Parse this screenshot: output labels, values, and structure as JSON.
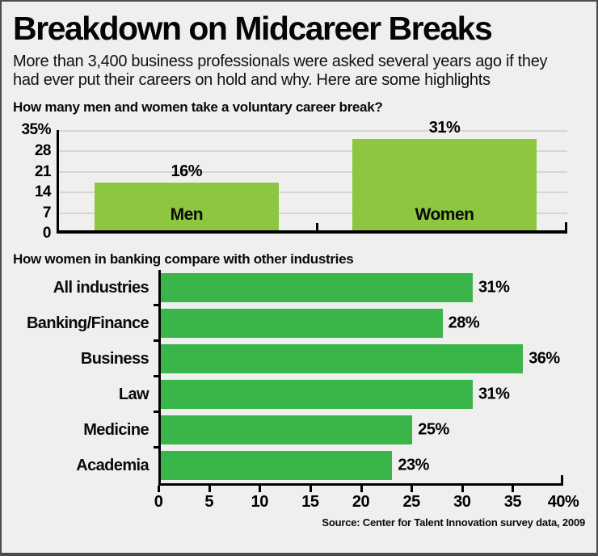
{
  "page": {
    "title": "Breakdown on Midcareer Breaks",
    "subtitle": "More than 3,400 business professionals were asked several years ago if they had ever put their careers on hold and why. Here are some highlights",
    "source": "Source: Center for Talent Innovation survey data, 2009"
  },
  "colors": {
    "background": "#efefee",
    "frame": "#4b4b4b",
    "gender_bar": "#8dc63f",
    "industry_bar": "#3ab54a",
    "gridline": "#d5d5d3",
    "axis": "#000000"
  },
  "chart_data": [
    {
      "type": "bar",
      "orientation": "vertical",
      "title": "How many men and women take a voluntary career break?",
      "categories": [
        "Men",
        "Women"
      ],
      "values": [
        16,
        31
      ],
      "value_labels": [
        "16%",
        "31%"
      ],
      "ylim": [
        0,
        35
      ],
      "yticks": [
        35,
        28,
        21,
        14,
        7,
        0
      ],
      "ytick_labels": [
        "35%",
        "28",
        "21",
        "14",
        "7",
        "0"
      ],
      "grid": true,
      "legend": "none",
      "bar_color": "#8dc63f"
    },
    {
      "type": "bar",
      "orientation": "horizontal",
      "title": "How women in banking compare with other industries",
      "categories": [
        "All industries",
        "Banking/Finance",
        "Business",
        "Law",
        "Medicine",
        "Academia"
      ],
      "values": [
        31,
        28,
        36,
        31,
        25,
        23
      ],
      "value_labels": [
        "31%",
        "28%",
        "36%",
        "31%",
        "25%",
        "23%"
      ],
      "xlim": [
        0,
        40
      ],
      "xticks": [
        0,
        5,
        10,
        15,
        20,
        25,
        30,
        35,
        40
      ],
      "xtick_labels": [
        "0",
        "5",
        "10",
        "15",
        "20",
        "25",
        "30",
        "35",
        "40%"
      ],
      "grid": false,
      "legend": "none",
      "bar_color": "#3ab54a"
    }
  ]
}
